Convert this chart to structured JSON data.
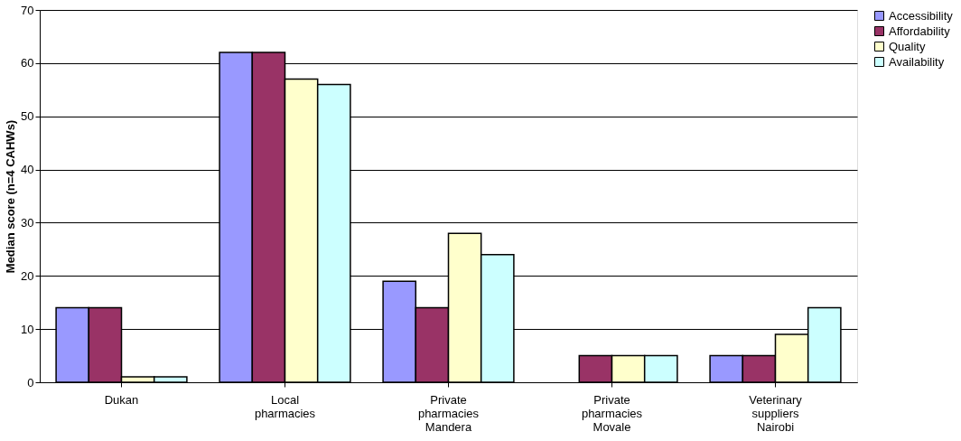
{
  "chart_data": {
    "type": "bar",
    "ylabel": "Median score (n=4 CAHWs)",
    "categories": [
      "Dukan",
      "Local pharmacies",
      "Private pharmacies Mandera",
      "Private pharmacies Movale",
      "Veterinary suppliers Nairobi"
    ],
    "series": [
      {
        "name": "Accessibility",
        "color": "#9999ff",
        "values": [
          14,
          62,
          19,
          null,
          5
        ]
      },
      {
        "name": "Affordability",
        "color": "#993366",
        "values": [
          14,
          62,
          14,
          5,
          5
        ]
      },
      {
        "name": "Quality",
        "color": "#ffffcc",
        "values": [
          1,
          57,
          28,
          5,
          9
        ]
      },
      {
        "name": "Availability",
        "color": "#ccffff",
        "values": [
          1,
          56,
          24,
          5,
          14
        ]
      }
    ],
    "ylim": [
      0,
      70
    ],
    "yticks": [
      0,
      10,
      20,
      30,
      40,
      50,
      60,
      70
    ],
    "grid": "y",
    "legend": "right"
  }
}
